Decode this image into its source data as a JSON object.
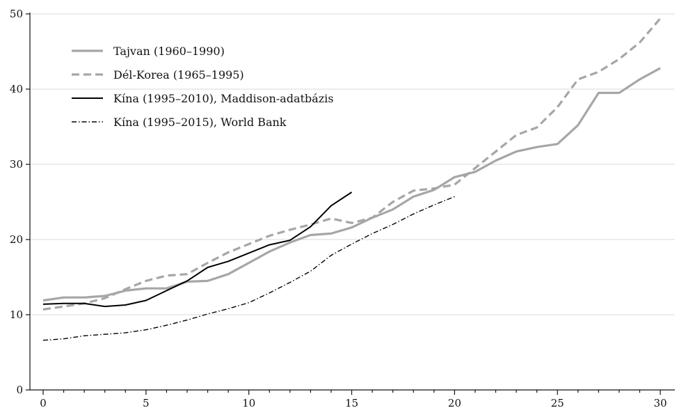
{
  "chart_data": {
    "type": "line",
    "title": "",
    "xlabel": "",
    "ylabel": "",
    "xlim": [
      0,
      30
    ],
    "ylim": [
      0,
      50
    ],
    "x_ticks": [
      0,
      5,
      10,
      15,
      20,
      25,
      30
    ],
    "y_ticks": [
      0,
      10,
      20,
      30,
      40,
      50
    ],
    "grid": "horizontal",
    "legend_position": "top-left",
    "series": [
      {
        "name": "Tajvan (1960–1990)",
        "color": "#a6a6a6",
        "style": "solid-thick",
        "x": [
          0,
          1,
          2,
          3,
          4,
          5,
          6,
          7,
          8,
          9,
          10,
          11,
          12,
          13,
          14,
          15,
          16,
          17,
          18,
          19,
          20,
          21,
          22,
          23,
          24,
          25,
          26,
          27,
          28,
          29,
          30
        ],
        "y": [
          11.9,
          12.3,
          12.3,
          12.5,
          13.2,
          13.5,
          13.5,
          14.4,
          14.5,
          15.4,
          16.9,
          18.4,
          19.6,
          20.6,
          20.8,
          21.6,
          22.9,
          24.0,
          25.7,
          26.6,
          28.3,
          29.0,
          30.5,
          31.7,
          32.3,
          32.7,
          35.2,
          39.5,
          39.5,
          41.3,
          42.8
        ]
      },
      {
        "name": "Dél-Korea (1965–1995)",
        "color": "#a6a6a6",
        "style": "dashed-thick",
        "x": [
          0,
          1,
          2,
          3,
          4,
          5,
          6,
          7,
          8,
          9,
          10,
          11,
          12,
          13,
          14,
          15,
          16,
          17,
          18,
          19,
          20,
          21,
          22,
          23,
          24,
          25,
          26,
          27,
          28,
          29,
          30
        ],
        "y": [
          10.7,
          11.1,
          11.5,
          12.2,
          13.4,
          14.5,
          15.2,
          15.4,
          16.9,
          18.3,
          19.4,
          20.5,
          21.3,
          22.0,
          22.8,
          22.2,
          22.9,
          25.0,
          26.5,
          26.8,
          27.3,
          29.5,
          31.7,
          33.9,
          34.9,
          37.6,
          41.3,
          42.3,
          44.0,
          46.2,
          49.4
        ]
      },
      {
        "name": "Kína (1995–2010), Maddison-adatbázis",
        "color": "#000000",
        "style": "solid",
        "x": [
          0,
          1,
          2,
          3,
          4,
          5,
          6,
          7,
          8,
          9,
          10,
          11,
          12,
          13,
          14,
          15
        ],
        "y": [
          11.4,
          11.5,
          11.5,
          11.1,
          11.3,
          11.9,
          13.2,
          14.5,
          16.3,
          17.1,
          18.2,
          19.3,
          19.9,
          21.7,
          24.5,
          26.3
        ]
      },
      {
        "name": "Kína (1995–2015), World Bank",
        "color": "#000000",
        "style": "dash-dot",
        "x": [
          0,
          1,
          2,
          3,
          4,
          5,
          6,
          7,
          8,
          9,
          10,
          11,
          12,
          13,
          14,
          15,
          16,
          17,
          18,
          19,
          20
        ],
        "y": [
          6.6,
          6.8,
          7.2,
          7.4,
          7.6,
          8.0,
          8.6,
          9.3,
          10.1,
          10.8,
          11.6,
          12.9,
          14.3,
          15.8,
          17.9,
          19.4,
          20.8,
          22.0,
          23.4,
          24.6,
          25.7
        ]
      }
    ]
  }
}
